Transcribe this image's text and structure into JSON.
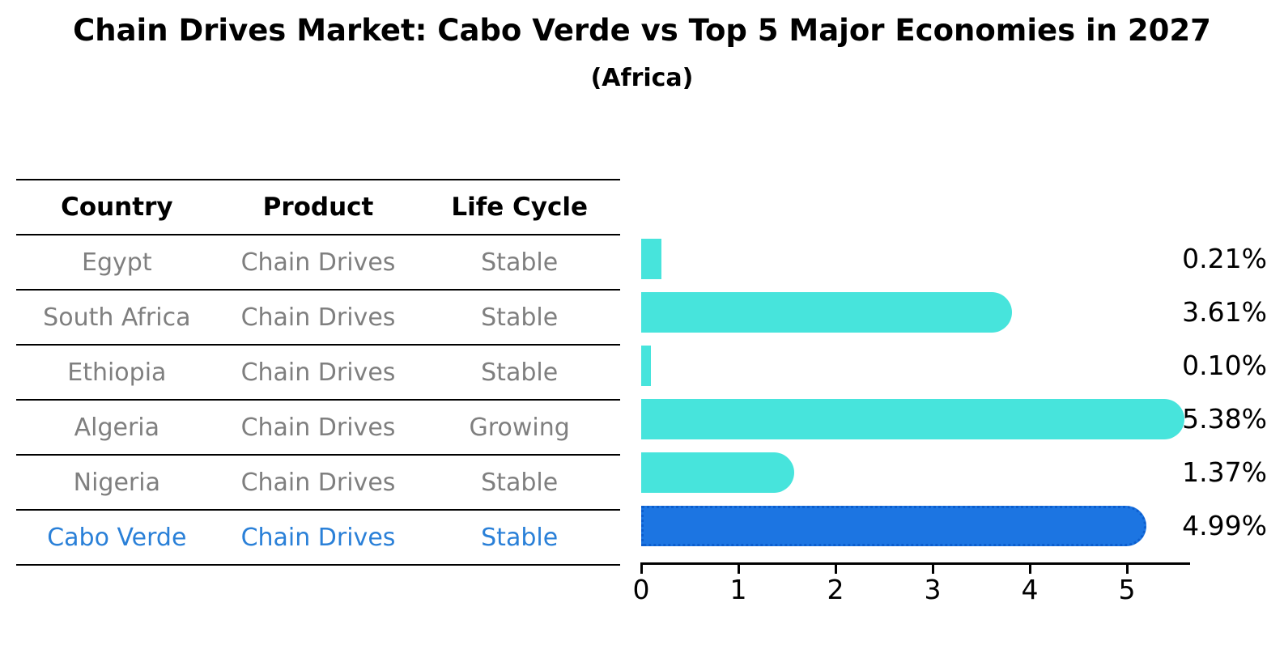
{
  "title": "Chain Drives Market: Cabo Verde vs Top 5 Major Economies in 2027",
  "subtitle": "(Africa)",
  "table": {
    "headers": [
      "Country",
      "Product",
      "Life Cycle"
    ],
    "rows": [
      {
        "country": "Egypt",
        "product": "Chain Drives",
        "life_cycle": "Stable",
        "highlighted": false
      },
      {
        "country": "South Africa",
        "product": "Chain Drives",
        "life_cycle": "Stable",
        "highlighted": false
      },
      {
        "country": "Ethiopia",
        "product": "Chain Drives",
        "life_cycle": "Stable",
        "highlighted": false
      },
      {
        "country": "Algeria",
        "product": "Chain Drives",
        "life_cycle": "Growing",
        "highlighted": false
      },
      {
        "country": "Nigeria",
        "product": "Chain Drives",
        "life_cycle": "Stable",
        "highlighted": false
      },
      {
        "country": "Cabo Verde",
        "product": "Chain Drives",
        "life_cycle": "Stable",
        "highlighted": true
      }
    ]
  },
  "chart_data": {
    "type": "bar",
    "orientation": "horizontal",
    "title": "Chain Drives Market: Cabo Verde vs Top 5 Major Economies in 2027",
    "subtitle": "(Africa)",
    "categories": [
      "Egypt",
      "South Africa",
      "Ethiopia",
      "Algeria",
      "Nigeria",
      "Cabo Verde"
    ],
    "values": [
      0.21,
      3.61,
      0.1,
      5.38,
      1.37,
      4.99
    ],
    "value_labels": [
      "0.21%",
      "3.61%",
      "0.10%",
      "5.38%",
      "1.37%",
      "4.99%"
    ],
    "x_ticks": [
      0,
      1,
      2,
      3,
      4,
      5
    ],
    "xlim": [
      0,
      5.65
    ],
    "xlabel": "",
    "ylabel": "",
    "grid": false,
    "legend": false,
    "highlighted_category": "Cabo Verde"
  },
  "colors": {
    "bar": "#47E4DC",
    "highlight_bar": "#1C75E2",
    "highlight_border": "#0C5ECE",
    "highlight_text": "#2A80D8",
    "muted_text": "#7F7F7F",
    "axis": "#000000"
  }
}
